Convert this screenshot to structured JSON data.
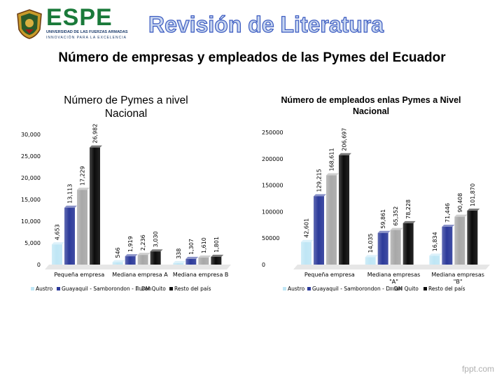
{
  "header": {
    "logo_text": "ESPE",
    "logo_sub1": "UNIVERSIDAD DE LAS FUERZAS ARMADAS",
    "logo_sub2": "INNOVACIÓN PARA LA EXCELENCIA",
    "title": "Revisión de Literatura"
  },
  "subtitle": "Número de empresas y empleados de las Pymes del Ecuador",
  "footer": "fppt.com",
  "colors": {
    "Austro": "#bfe6f5",
    "Guayaquil": "#2c3a9a",
    "DMQuito": "#a8a8a8",
    "Resto": "#0c0c0c"
  },
  "chart_data": [
    {
      "type": "bar",
      "title": "Número de Pymes a nivel Nacional",
      "categories": [
        "Pequeña empresa",
        "Mediana empresa A",
        "Mediana empresa B"
      ],
      "series": [
        {
          "name": "Austro",
          "values": [
            4653,
            546,
            338
          ]
        },
        {
          "name": "Guayaquil - Samborondon - Duran",
          "values": [
            13113,
            1919,
            1307
          ]
        },
        {
          "name": "DM Quito",
          "values": [
            17229,
            2236,
            1610
          ]
        },
        {
          "name": "Resto del país",
          "values": [
            26982,
            3030,
            1801
          ]
        }
      ],
      "data_labels": [
        [
          "4,653",
          "13,113",
          "17,229",
          "26,982"
        ],
        [
          "546",
          "1,919",
          "2,236",
          "3,030"
        ],
        [
          "338",
          "1,307",
          "1,610",
          "1,801"
        ]
      ],
      "yticks": [
        "0",
        "5,000",
        "10,000",
        "15,000",
        "20,000",
        "25,000",
        "30,000"
      ],
      "ylim": [
        0,
        30000
      ],
      "legend": "bottom"
    },
    {
      "type": "bar",
      "title": "Número de empleados enlas Pymes a Nivel Nacional",
      "categories": [
        "Pequeña empresa",
        "Mediana empresas \"A\"",
        "Mediana empresas \"B\""
      ],
      "series": [
        {
          "name": "Austro",
          "values": [
            42601,
            14035,
            16834
          ]
        },
        {
          "name": "Guayaquil - Samborondon - Duran",
          "values": [
            129215,
            59861,
            71446
          ]
        },
        {
          "name": "DM Quito",
          "values": [
            168611,
            65352,
            90408
          ]
        },
        {
          "name": "Resto del país",
          "values": [
            206697,
            78228,
            101870
          ]
        }
      ],
      "data_labels": [
        [
          "42,601",
          "129,215",
          "168,611",
          "206,697"
        ],
        [
          "14,035",
          "59,861",
          "65,352",
          "78,228"
        ],
        [
          "16,834",
          "71,446",
          "90,408",
          "101,870"
        ]
      ],
      "yticks": [
        "0",
        "50000",
        "100000",
        "150000",
        "200000",
        "250000"
      ],
      "ylim": [
        0,
        250000
      ],
      "legend": "bottom"
    }
  ]
}
